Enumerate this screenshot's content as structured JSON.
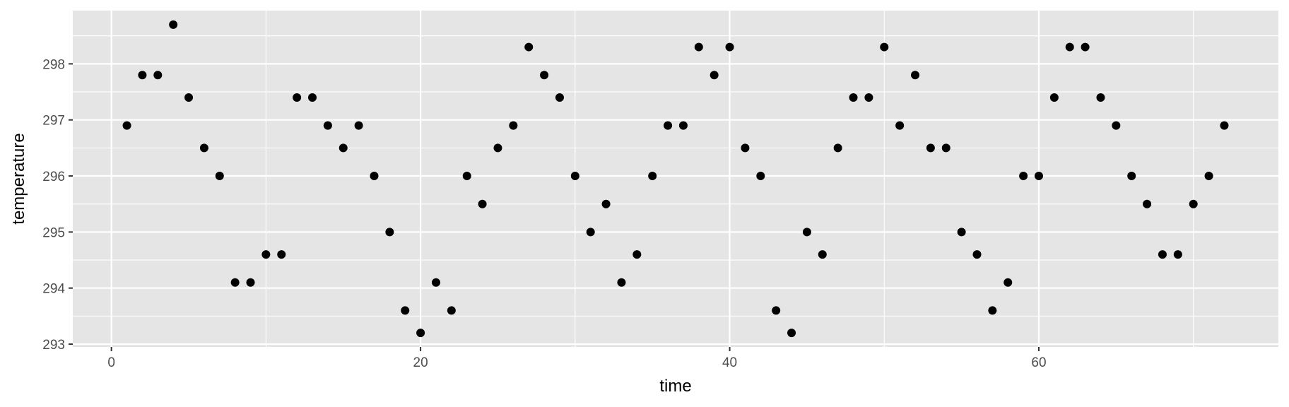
{
  "chart_data": {
    "type": "scatter",
    "title": "",
    "xlabel": "time",
    "ylabel": "temperature",
    "xlim": [
      -2.5,
      75.5
    ],
    "ylim": [
      292.95,
      298.95
    ],
    "x_ticks": [
      0,
      20,
      40,
      60
    ],
    "y_ticks": [
      293,
      294,
      295,
      296,
      297,
      298
    ],
    "grid": true,
    "legend": "none",
    "colors": {
      "panel": "#e5e5e5",
      "grid": "#ffffff",
      "point": "#000000"
    },
    "series": [
      {
        "x": [
          1,
          2,
          3,
          4,
          5,
          6,
          7,
          8,
          9,
          10,
          11,
          12,
          13,
          14,
          15,
          16,
          17,
          18,
          19,
          20,
          21,
          22,
          23,
          24,
          25,
          26,
          27,
          28,
          29,
          30,
          31,
          32,
          33,
          34,
          35,
          36,
          37,
          38,
          39,
          40,
          41,
          42,
          43,
          44,
          45,
          46,
          47,
          48,
          49,
          50,
          51,
          52,
          53,
          54,
          55,
          56,
          57,
          58,
          59,
          60,
          61,
          62,
          63,
          64,
          65,
          66,
          67,
          68,
          69,
          70,
          71,
          72
        ],
        "y": [
          296.9,
          297.8,
          297.8,
          298.7,
          297.4,
          296.5,
          296.0,
          294.1,
          294.1,
          294.6,
          294.6,
          297.4,
          297.4,
          296.9,
          296.5,
          296.9,
          296.0,
          295.0,
          293.6,
          293.2,
          294.1,
          293.6,
          296.0,
          295.5,
          296.5,
          296.9,
          298.3,
          297.8,
          297.4,
          296.0,
          295.0,
          295.5,
          294.1,
          294.6,
          296.0,
          296.9,
          296.9,
          298.3,
          297.8,
          298.3,
          296.5,
          296.0,
          293.6,
          293.2,
          295.0,
          294.6,
          296.5,
          297.4,
          297.4,
          298.3,
          296.9,
          297.8,
          296.5,
          296.5,
          295.0,
          294.6,
          293.6,
          294.1,
          296.0,
          296.0,
          297.4,
          298.3,
          298.3,
          297.4,
          296.9,
          296.0,
          295.5,
          294.6,
          294.6,
          295.5,
          296.0,
          296.9
        ]
      }
    ]
  }
}
